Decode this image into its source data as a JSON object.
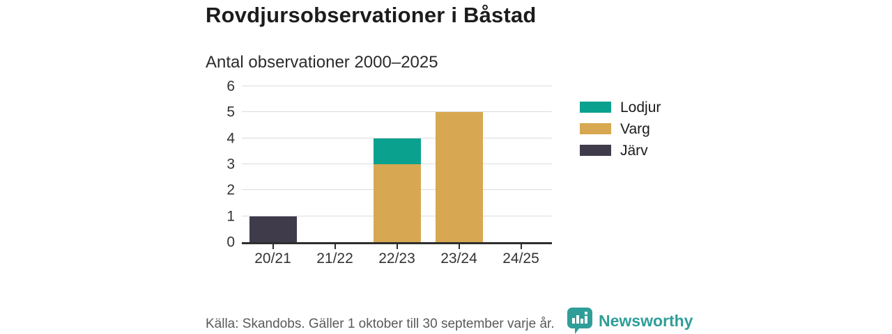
{
  "title": "Rovdjursobservationer i Båstad",
  "subtitle": "Antal observationer 2000–2025",
  "footer": {
    "source": "Källa: Skandobs. Gäller 1 oktober till 30 september varje år.",
    "brand": "Newsworthy"
  },
  "colors": {
    "lodjur": "#0aa18f",
    "varg": "#d7a851",
    "jarv": "#3f3b4b",
    "axis": "#2e2e2e",
    "grid": "#dcdcdc",
    "text": "#333333",
    "footer_text": "#595959",
    "brand": "#2f9e98"
  },
  "icons": {
    "brand_logo": "speech-bubble-bar-chart-icon"
  },
  "chart_data": {
    "type": "bar",
    "stacked": true,
    "title": "Rovdjursobservationer i Båstad",
    "subtitle": "Antal observationer 2000–2025",
    "categories": [
      "20/21",
      "21/22",
      "22/23",
      "23/24",
      "24/25"
    ],
    "series": [
      {
        "name": "Lodjur",
        "color_key": "lodjur",
        "values": [
          0,
          0,
          1,
          0,
          0
        ]
      },
      {
        "name": "Varg",
        "color_key": "varg",
        "values": [
          0,
          0,
          3,
          5,
          0
        ]
      },
      {
        "name": "Järv",
        "color_key": "jarv",
        "values": [
          1,
          0,
          0,
          0,
          0
        ]
      }
    ],
    "xlabel": "",
    "ylabel": "",
    "ylim": [
      0,
      6
    ],
    "yticks": [
      0,
      1,
      2,
      3,
      4,
      5,
      6
    ],
    "grid": "horizontal",
    "legend_position": "right"
  }
}
